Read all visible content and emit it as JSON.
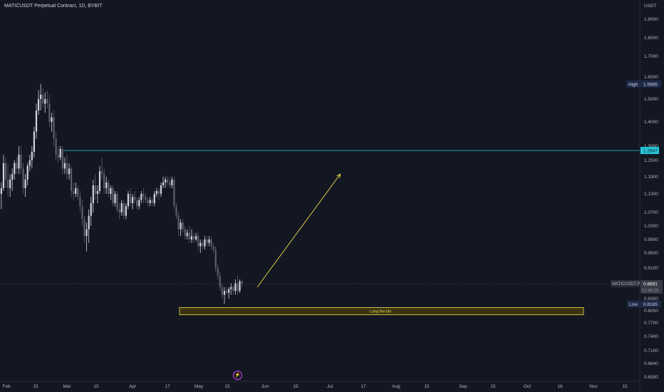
{
  "header": {
    "title": "MATICUSDT Perpetual Contract, 1D, BYBIT"
  },
  "price_axis": {
    "unit": "USDT",
    "labels": [
      "1.9000",
      "1.8000",
      "1.7000",
      "1.6000",
      "1.5000",
      "1.4000",
      "1.3000",
      "1.2500",
      "1.1900",
      "1.1300",
      "1.0700",
      "1.0300",
      "0.9900",
      "0.9500",
      "0.9100",
      "0.8300",
      "0.8000",
      "0.7700",
      "0.7400",
      "0.7100",
      "0.6840",
      "0.6580"
    ]
  },
  "time_axis": {
    "labels": [
      "Feb",
      "15",
      "Mar",
      "15",
      "Apr",
      "17",
      "May",
      "15",
      "Jun",
      "15",
      "Jul",
      "17",
      "Aug",
      "15",
      "Sep",
      "15",
      "Oct",
      "16",
      "Nov",
      "15"
    ]
  },
  "tags": {
    "high_label": "High",
    "high_value": "1.5685",
    "low_label": "Low",
    "low_value": "0.8165",
    "horizontal_line_value": "1.2847",
    "symbol": "MATICUSDT.P",
    "last_price": "0.8691",
    "countdown": "01:59:25"
  },
  "annotation": {
    "box_text": "Long the bin."
  },
  "colors": {
    "background": "#131722",
    "candle_up": "#d1d4dc",
    "candle_down": "#5d606b",
    "hline": "#26c6da",
    "arrow": "#f0e04a",
    "box_border": "#f0e04a",
    "box_fill": "#3a3412"
  },
  "icons": {
    "event": "lightning-icon"
  },
  "chart_data": {
    "type": "candlestick",
    "title": "MATICUSDT Perpetual Contract, 1D, BYBIT",
    "xlabel": "",
    "ylabel": "USDT",
    "ylim": [
      0.658,
      1.9
    ],
    "high": 1.5685,
    "low": 0.8165,
    "last": 0.8691,
    "horizontal_line": 1.2847,
    "target_arrow": {
      "from": [
        0.86,
        "2023-05-27"
      ],
      "to": [
        1.2,
        "2023-07-04"
      ]
    },
    "long_zone": {
      "label": "Long the bin.",
      "top": 0.808,
      "bottom": 0.79
    },
    "series": [
      {
        "date": "2023-01-26",
        "open": 1.05,
        "high": 1.12,
        "low": 1.02,
        "close": 1.1
      },
      {
        "date": "2023-01-27",
        "open": 1.1,
        "high": 1.16,
        "low": 1.06,
        "close": 1.13
      },
      {
        "date": "2023-01-28",
        "open": 1.13,
        "high": 1.18,
        "low": 1.1,
        "close": 1.15
      },
      {
        "date": "2023-01-29",
        "open": 1.15,
        "high": 1.2,
        "low": 1.11,
        "close": 1.13
      },
      {
        "date": "2023-01-30",
        "open": 1.13,
        "high": 1.17,
        "low": 1.08,
        "close": 1.15
      },
      {
        "date": "2023-01-31",
        "open": 1.15,
        "high": 1.27,
        "low": 1.14,
        "close": 1.24
      },
      {
        "date": "2023-02-01",
        "open": 1.24,
        "high": 1.26,
        "low": 1.15,
        "close": 1.18
      },
      {
        "date": "2023-02-02",
        "open": 1.18,
        "high": 1.24,
        "low": 1.12,
        "close": 1.15
      },
      {
        "date": "2023-02-03",
        "open": 1.15,
        "high": 1.2,
        "low": 1.12,
        "close": 1.18
      },
      {
        "date": "2023-02-04",
        "open": 1.18,
        "high": 1.22,
        "low": 1.14,
        "close": 1.2
      },
      {
        "date": "2023-02-05",
        "open": 1.2,
        "high": 1.25,
        "low": 1.18,
        "close": 1.24
      },
      {
        "date": "2023-02-06",
        "open": 1.24,
        "high": 1.26,
        "low": 1.2,
        "close": 1.22
      },
      {
        "date": "2023-02-07",
        "open": 1.22,
        "high": 1.3,
        "low": 1.2,
        "close": 1.27
      },
      {
        "date": "2023-02-08",
        "open": 1.27,
        "high": 1.3,
        "low": 1.2,
        "close": 1.22
      },
      {
        "date": "2023-02-09",
        "open": 1.22,
        "high": 1.24,
        "low": 1.13,
        "close": 1.15
      },
      {
        "date": "2023-02-10",
        "open": 1.15,
        "high": 1.2,
        "low": 1.12,
        "close": 1.18
      },
      {
        "date": "2023-02-11",
        "open": 1.18,
        "high": 1.24,
        "low": 1.16,
        "close": 1.23
      },
      {
        "date": "2023-02-12",
        "open": 1.23,
        "high": 1.27,
        "low": 1.21,
        "close": 1.25
      },
      {
        "date": "2023-02-13",
        "open": 1.25,
        "high": 1.3,
        "low": 1.22,
        "close": 1.28
      },
      {
        "date": "2023-02-14",
        "open": 1.28,
        "high": 1.38,
        "low": 1.26,
        "close": 1.36
      },
      {
        "date": "2023-02-15",
        "open": 1.36,
        "high": 1.48,
        "low": 1.33,
        "close": 1.45
      },
      {
        "date": "2023-02-16",
        "open": 1.45,
        "high": 1.54,
        "low": 1.43,
        "close": 1.5
      },
      {
        "date": "2023-02-17",
        "open": 1.5,
        "high": 1.5685,
        "low": 1.45,
        "close": 1.52
      },
      {
        "date": "2023-02-18",
        "open": 1.52,
        "high": 1.55,
        "low": 1.46,
        "close": 1.48
      },
      {
        "date": "2023-02-19",
        "open": 1.48,
        "high": 1.53,
        "low": 1.44,
        "close": 1.5
      },
      {
        "date": "2023-02-20",
        "open": 1.5,
        "high": 1.54,
        "low": 1.46,
        "close": 1.48
      },
      {
        "date": "2023-02-21",
        "open": 1.48,
        "high": 1.52,
        "low": 1.38,
        "close": 1.4
      },
      {
        "date": "2023-02-22",
        "open": 1.4,
        "high": 1.44,
        "low": 1.36,
        "close": 1.42
      },
      {
        "date": "2023-02-23",
        "open": 1.42,
        "high": 1.45,
        "low": 1.3,
        "close": 1.33
      },
      {
        "date": "2023-02-24",
        "open": 1.33,
        "high": 1.36,
        "low": 1.25,
        "close": 1.27
      },
      {
        "date": "2023-02-25",
        "open": 1.27,
        "high": 1.3,
        "low": 1.24,
        "close": 1.26
      },
      {
        "date": "2023-02-26",
        "open": 1.26,
        "high": 1.3,
        "low": 1.25,
        "close": 1.29
      },
      {
        "date": "2023-02-27",
        "open": 1.29,
        "high": 1.3,
        "low": 1.2,
        "close": 1.22
      },
      {
        "date": "2023-02-28",
        "open": 1.22,
        "high": 1.26,
        "low": 1.2,
        "close": 1.24
      },
      {
        "date": "2023-03-01",
        "open": 1.24,
        "high": 1.27,
        "low": 1.18,
        "close": 1.2
      },
      {
        "date": "2023-03-02",
        "open": 1.2,
        "high": 1.24,
        "low": 1.18,
        "close": 1.22
      },
      {
        "date": "2023-03-03",
        "open": 1.22,
        "high": 1.23,
        "low": 1.12,
        "close": 1.14
      },
      {
        "date": "2023-03-04",
        "open": 1.14,
        "high": 1.17,
        "low": 1.11,
        "close": 1.13
      },
      {
        "date": "2023-03-05",
        "open": 1.13,
        "high": 1.17,
        "low": 1.12,
        "close": 1.15
      },
      {
        "date": "2023-03-06",
        "open": 1.15,
        "high": 1.16,
        "low": 1.11,
        "close": 1.12
      },
      {
        "date": "2023-03-07",
        "open": 1.12,
        "high": 1.14,
        "low": 1.07,
        "close": 1.09
      },
      {
        "date": "2023-03-08",
        "open": 1.09,
        "high": 1.11,
        "low": 1.03,
        "close": 1.05
      },
      {
        "date": "2023-03-09",
        "open": 1.05,
        "high": 1.06,
        "low": 0.98,
        "close": 1.0
      },
      {
        "date": "2023-03-10",
        "open": 1.0,
        "high": 1.04,
        "low": 0.955,
        "close": 1.02
      },
      {
        "date": "2023-03-11",
        "open": 1.02,
        "high": 1.08,
        "low": 0.98,
        "close": 1.06
      },
      {
        "date": "2023-03-12",
        "open": 1.06,
        "high": 1.12,
        "low": 1.03,
        "close": 1.1
      },
      {
        "date": "2023-03-13",
        "open": 1.1,
        "high": 1.18,
        "low": 1.07,
        "close": 1.16
      },
      {
        "date": "2023-03-14",
        "open": 1.16,
        "high": 1.2,
        "low": 1.11,
        "close": 1.13
      },
      {
        "date": "2023-03-15",
        "open": 1.13,
        "high": 1.16,
        "low": 1.1,
        "close": 1.14
      },
      {
        "date": "2023-03-16",
        "open": 1.14,
        "high": 1.23,
        "low": 1.13,
        "close": 1.21
      },
      {
        "date": "2023-03-17",
        "open": 1.21,
        "high": 1.26,
        "low": 1.18,
        "close": 1.2
      },
      {
        "date": "2023-03-18",
        "open": 1.2,
        "high": 1.22,
        "low": 1.13,
        "close": 1.15
      },
      {
        "date": "2023-03-19",
        "open": 1.15,
        "high": 1.19,
        "low": 1.13,
        "close": 1.17
      },
      {
        "date": "2023-03-20",
        "open": 1.17,
        "high": 1.18,
        "low": 1.12,
        "close": 1.13
      },
      {
        "date": "2023-03-21",
        "open": 1.13,
        "high": 1.16,
        "low": 1.11,
        "close": 1.15
      },
      {
        "date": "2023-03-22",
        "open": 1.15,
        "high": 1.16,
        "low": 1.09,
        "close": 1.1
      },
      {
        "date": "2023-03-23",
        "open": 1.1,
        "high": 1.14,
        "low": 1.09,
        "close": 1.13
      },
      {
        "date": "2023-03-24",
        "open": 1.13,
        "high": 1.14,
        "low": 1.07,
        "close": 1.08
      },
      {
        "date": "2023-03-25",
        "open": 1.08,
        "high": 1.1,
        "low": 1.05,
        "close": 1.07
      },
      {
        "date": "2023-03-26",
        "open": 1.07,
        "high": 1.11,
        "low": 1.06,
        "close": 1.1
      },
      {
        "date": "2023-03-27",
        "open": 1.1,
        "high": 1.11,
        "low": 1.05,
        "close": 1.06
      },
      {
        "date": "2023-03-28",
        "open": 1.06,
        "high": 1.1,
        "low": 1.05,
        "close": 1.09
      },
      {
        "date": "2023-03-29",
        "open": 1.09,
        "high": 1.14,
        "low": 1.08,
        "close": 1.13
      },
      {
        "date": "2023-03-30",
        "open": 1.13,
        "high": 1.15,
        "low": 1.09,
        "close": 1.1
      },
      {
        "date": "2023-03-31",
        "open": 1.1,
        "high": 1.13,
        "low": 1.08,
        "close": 1.12
      },
      {
        "date": "2023-04-01",
        "open": 1.12,
        "high": 1.14,
        "low": 1.1,
        "close": 1.11
      },
      {
        "date": "2023-04-02",
        "open": 1.11,
        "high": 1.12,
        "low": 1.08,
        "close": 1.09
      },
      {
        "date": "2023-04-03",
        "open": 1.09,
        "high": 1.12,
        "low": 1.08,
        "close": 1.11
      },
      {
        "date": "2023-04-04",
        "open": 1.11,
        "high": 1.14,
        "low": 1.1,
        "close": 1.13
      },
      {
        "date": "2023-04-05",
        "open": 1.13,
        "high": 1.15,
        "low": 1.1,
        "close": 1.12
      },
      {
        "date": "2023-04-06",
        "open": 1.12,
        "high": 1.13,
        "low": 1.1,
        "close": 1.11
      },
      {
        "date": "2023-04-07",
        "open": 1.11,
        "high": 1.12,
        "low": 1.09,
        "close": 1.1
      },
      {
        "date": "2023-04-08",
        "open": 1.1,
        "high": 1.12,
        "low": 1.09,
        "close": 1.11
      },
      {
        "date": "2023-04-09",
        "open": 1.11,
        "high": 1.12,
        "low": 1.09,
        "close": 1.1
      },
      {
        "date": "2023-04-10",
        "open": 1.1,
        "high": 1.14,
        "low": 1.09,
        "close": 1.13
      },
      {
        "date": "2023-04-11",
        "open": 1.13,
        "high": 1.15,
        "low": 1.12,
        "close": 1.14
      },
      {
        "date": "2023-04-12",
        "open": 1.14,
        "high": 1.15,
        "low": 1.11,
        "close": 1.13
      },
      {
        "date": "2023-04-13",
        "open": 1.13,
        "high": 1.17,
        "low": 1.12,
        "close": 1.16
      },
      {
        "date": "2023-04-14",
        "open": 1.16,
        "high": 1.19,
        "low": 1.15,
        "close": 1.17
      },
      {
        "date": "2023-04-15",
        "open": 1.17,
        "high": 1.19,
        "low": 1.15,
        "close": 1.18
      },
      {
        "date": "2023-04-16",
        "open": 1.18,
        "high": 1.195,
        "low": 1.16,
        "close": 1.17
      },
      {
        "date": "2023-04-17",
        "open": 1.17,
        "high": 1.19,
        "low": 1.15,
        "close": 1.16
      },
      {
        "date": "2023-04-18",
        "open": 1.16,
        "high": 1.19,
        "low": 1.15,
        "close": 1.18
      },
      {
        "date": "2023-04-19",
        "open": 1.18,
        "high": 1.19,
        "low": 1.08,
        "close": 1.09
      },
      {
        "date": "2023-04-20",
        "open": 1.09,
        "high": 1.1,
        "low": 1.05,
        "close": 1.06
      },
      {
        "date": "2023-04-21",
        "open": 1.06,
        "high": 1.07,
        "low": 1.0,
        "close": 1.02
      },
      {
        "date": "2023-04-22",
        "open": 1.02,
        "high": 1.05,
        "low": 1.0,
        "close": 1.04
      },
      {
        "date": "2023-04-23",
        "open": 1.04,
        "high": 1.05,
        "low": 1.01,
        "close": 1.02
      },
      {
        "date": "2023-04-24",
        "open": 1.02,
        "high": 1.03,
        "low": 0.99,
        "close": 1.0
      },
      {
        "date": "2023-04-25",
        "open": 1.0,
        "high": 1.02,
        "low": 0.99,
        "close": 1.01
      },
      {
        "date": "2023-04-26",
        "open": 1.01,
        "high": 1.03,
        "low": 0.98,
        "close": 0.99
      },
      {
        "date": "2023-04-27",
        "open": 0.99,
        "high": 1.02,
        "low": 0.98,
        "close": 1.0
      },
      {
        "date": "2023-04-28",
        "open": 1.0,
        "high": 1.01,
        "low": 0.98,
        "close": 0.99
      },
      {
        "date": "2023-04-29",
        "open": 0.99,
        "high": 1.01,
        "low": 0.985,
        "close": 1.0
      },
      {
        "date": "2023-04-30",
        "open": 1.0,
        "high": 1.01,
        "low": 0.96,
        "close": 0.97
      },
      {
        "date": "2023-05-01",
        "open": 0.97,
        "high": 0.99,
        "low": 0.95,
        "close": 0.98
      },
      {
        "date": "2023-05-02",
        "open": 0.98,
        "high": 0.99,
        "low": 0.96,
        "close": 0.97
      },
      {
        "date": "2023-05-03",
        "open": 0.97,
        "high": 1.0,
        "low": 0.96,
        "close": 0.99
      },
      {
        "date": "2023-05-04",
        "open": 0.99,
        "high": 1.0,
        "low": 0.97,
        "close": 0.98
      },
      {
        "date": "2023-05-05",
        "open": 0.98,
        "high": 1.0,
        "low": 0.97,
        "close": 0.99
      },
      {
        "date": "2023-05-06",
        "open": 0.99,
        "high": 1.0,
        "low": 0.96,
        "close": 0.97
      },
      {
        "date": "2023-05-07",
        "open": 0.97,
        "high": 0.98,
        "low": 0.95,
        "close": 0.96
      },
      {
        "date": "2023-05-08",
        "open": 0.96,
        "high": 0.97,
        "low": 0.9,
        "close": 0.91
      },
      {
        "date": "2023-05-09",
        "open": 0.91,
        "high": 0.92,
        "low": 0.88,
        "close": 0.89
      },
      {
        "date": "2023-05-10",
        "open": 0.89,
        "high": 0.9,
        "low": 0.85,
        "close": 0.86
      },
      {
        "date": "2023-05-11",
        "open": 0.86,
        "high": 0.87,
        "low": 0.83,
        "close": 0.84
      },
      {
        "date": "2023-05-12",
        "open": 0.84,
        "high": 0.86,
        "low": 0.8165,
        "close": 0.85
      },
      {
        "date": "2023-05-13",
        "open": 0.85,
        "high": 0.86,
        "low": 0.84,
        "close": 0.845
      },
      {
        "date": "2023-05-14",
        "open": 0.845,
        "high": 0.86,
        "low": 0.83,
        "close": 0.855
      },
      {
        "date": "2023-05-15",
        "open": 0.855,
        "high": 0.87,
        "low": 0.84,
        "close": 0.86
      },
      {
        "date": "2023-05-16",
        "open": 0.86,
        "high": 0.865,
        "low": 0.84,
        "close": 0.85
      },
      {
        "date": "2023-05-17",
        "open": 0.85,
        "high": 0.88,
        "low": 0.84,
        "close": 0.87
      },
      {
        "date": "2023-05-18",
        "open": 0.87,
        "high": 0.89,
        "low": 0.84,
        "close": 0.85
      },
      {
        "date": "2023-05-19",
        "open": 0.85,
        "high": 0.88,
        "low": 0.845,
        "close": 0.875
      },
      {
        "date": "2023-05-20",
        "open": 0.875,
        "high": 0.88,
        "low": 0.86,
        "close": 0.8691
      }
    ]
  }
}
